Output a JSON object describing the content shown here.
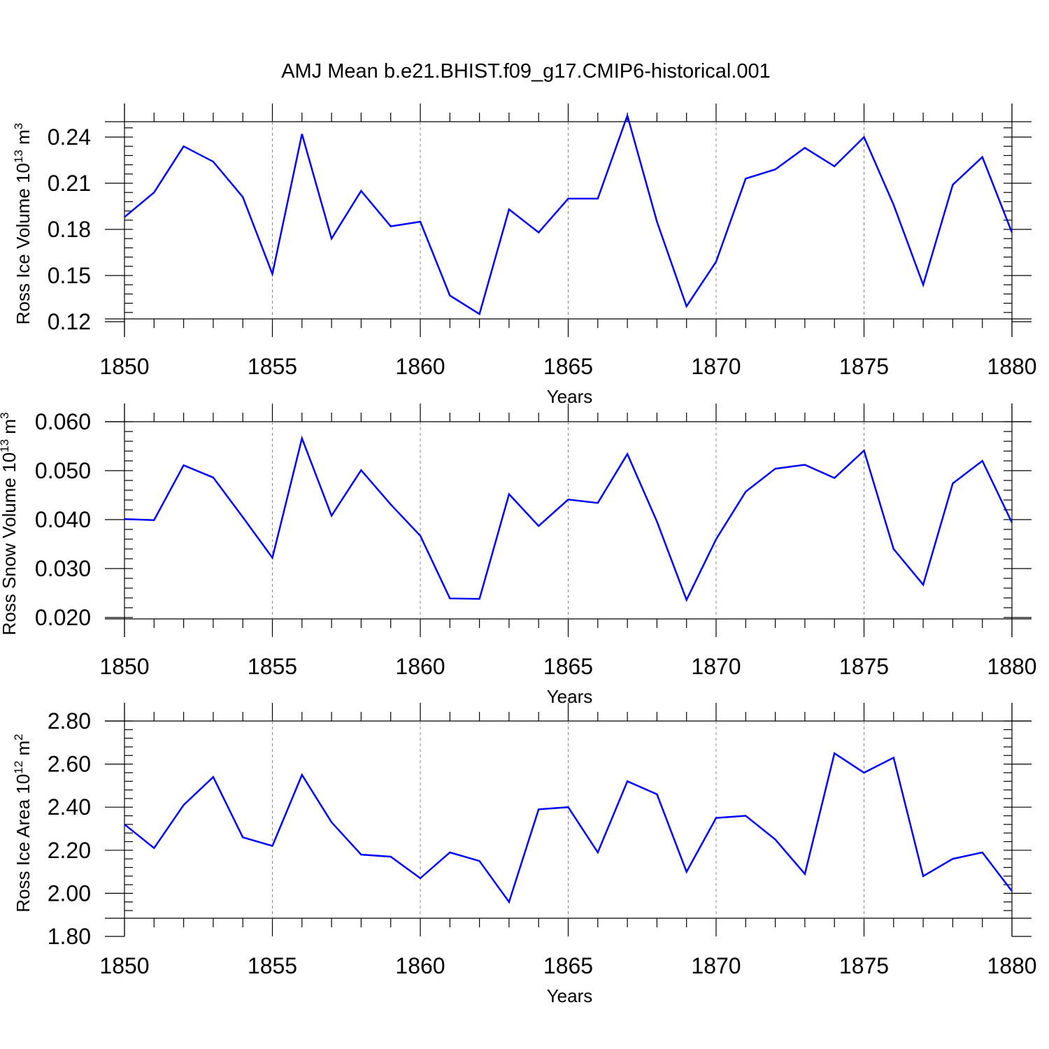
{
  "title": "AMJ Mean b.e21.BHIST.f09_g17.CMIP6-historical.001",
  "colors": {
    "series": "#0000ff",
    "axes": "#000000",
    "grid": "#888888"
  },
  "chart_data": [
    {
      "type": "line",
      "xlabel": "Years",
      "ylabel": {
        "base": "Ross Ice Volume 10",
        "exp1": "13",
        "mid": " m",
        "exp2": "3"
      },
      "xlim": [
        1850,
        1880
      ],
      "ylim": [
        0.11,
        0.25
      ],
      "xticks": [
        1850,
        1855,
        1860,
        1865,
        1870,
        1875,
        1880
      ],
      "yticks": [
        "0.12",
        "0.15",
        "0.18",
        "0.21",
        "0.24"
      ],
      "grid": "vertical dashed at major x ticks",
      "x": [
        1850,
        1851,
        1852,
        1853,
        1854,
        1855,
        1856,
        1857,
        1858,
        1859,
        1860,
        1861,
        1862,
        1863,
        1864,
        1865,
        1866,
        1867,
        1868,
        1869,
        1870,
        1871,
        1872,
        1873,
        1874,
        1875,
        1876,
        1877,
        1878,
        1879,
        1880
      ],
      "values": [
        0.188,
        0.204,
        0.234,
        0.224,
        0.201,
        0.151,
        0.242,
        0.174,
        0.205,
        0.182,
        0.185,
        0.137,
        0.125,
        0.193,
        0.178,
        0.2,
        0.2,
        0.254,
        0.185,
        0.13,
        0.159,
        0.213,
        0.219,
        0.233,
        0.221,
        0.24,
        0.196,
        0.144,
        0.209,
        0.227,
        0.178
      ]
    },
    {
      "type": "line",
      "xlabel": "Years",
      "ylabel": {
        "base": "Ross Snow Volume 10",
        "exp1": "13",
        "mid": " m",
        "exp2": "3"
      },
      "xlim": [
        1850,
        1880
      ],
      "ylim": [
        0.016,
        0.06
      ],
      "xticks": [
        1850,
        1855,
        1860,
        1865,
        1870,
        1875,
        1880
      ],
      "yticks": [
        "0.020",
        "0.030",
        "0.040",
        "0.050",
        "0.060"
      ],
      "grid": "vertical dashed at major x ticks",
      "x": [
        1850,
        1851,
        1852,
        1853,
        1854,
        1855,
        1856,
        1857,
        1858,
        1859,
        1860,
        1861,
        1862,
        1863,
        1864,
        1865,
        1866,
        1867,
        1868,
        1869,
        1870,
        1871,
        1872,
        1873,
        1874,
        1875,
        1876,
        1877,
        1878,
        1879,
        1880
      ],
      "values": [
        0.0401,
        0.0399,
        0.0511,
        0.0486,
        0.0405,
        0.0322,
        0.0566,
        0.0408,
        0.0501,
        0.0431,
        0.0367,
        0.0239,
        0.0238,
        0.0452,
        0.0387,
        0.0441,
        0.0434,
        0.0534,
        0.0396,
        0.0236,
        0.036,
        0.0457,
        0.0504,
        0.0512,
        0.0485,
        0.0541,
        0.034,
        0.0267,
        0.0474,
        0.052,
        0.0394
      ]
    },
    {
      "type": "line",
      "xlabel": "Years",
      "ylabel": {
        "base": "Ross Ice Area 10",
        "exp1": "12",
        "mid": " m",
        "exp2": "2"
      },
      "xlim": [
        1850,
        1880
      ],
      "ylim": [
        1.8,
        2.8
      ],
      "xticks": [
        1850,
        1855,
        1860,
        1865,
        1870,
        1875,
        1880
      ],
      "yticks": [
        "1.80",
        "2.00",
        "2.20",
        "2.40",
        "2.60",
        "2.80"
      ],
      "grid": "vertical dashed at major x ticks",
      "x": [
        1850,
        1851,
        1852,
        1853,
        1854,
        1855,
        1856,
        1857,
        1858,
        1859,
        1860,
        1861,
        1862,
        1863,
        1864,
        1865,
        1866,
        1867,
        1868,
        1869,
        1870,
        1871,
        1872,
        1873,
        1874,
        1875,
        1876,
        1877,
        1878,
        1879,
        1880
      ],
      "values": [
        2.32,
        2.21,
        2.41,
        2.54,
        2.26,
        2.22,
        2.55,
        2.33,
        2.18,
        2.17,
        2.07,
        2.19,
        2.15,
        1.96,
        2.39,
        2.4,
        2.19,
        2.52,
        2.46,
        2.1,
        2.35,
        2.36,
        2.25,
        2.09,
        2.65,
        2.56,
        2.63,
        2.08,
        2.16,
        2.19,
        2.01
      ]
    }
  ]
}
